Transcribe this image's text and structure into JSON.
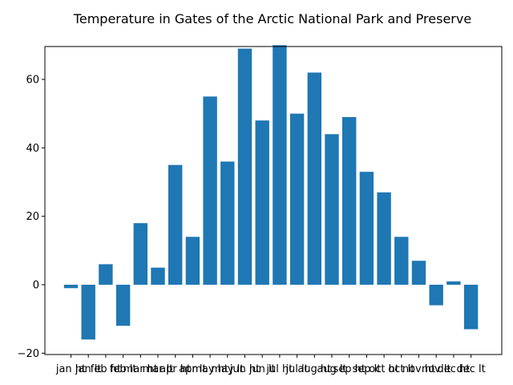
{
  "chart_data": {
    "type": "bar",
    "title": "Temperature in Gates of the Arctic National Park and Preserve",
    "xlabel": "",
    "ylabel": "",
    "categories": [
      "jan ht",
      "jan lt",
      "feb ht",
      "feb lt",
      "mar ht",
      "mar lt",
      "apr ht",
      "apr lt",
      "may ht",
      "may lt",
      "jun ht",
      "jun lt",
      "jul ht",
      "jul lt",
      "aug ht",
      "aug lt",
      "sep ht",
      "sep lt",
      "oct ht",
      "oct lt",
      "nov ht",
      "nov lt",
      "dec ht",
      "dec lt"
    ],
    "values": [
      -1,
      -16,
      6,
      -12,
      18,
      5,
      35,
      14,
      55,
      36,
      69,
      48,
      70,
      50,
      62,
      44,
      49,
      33,
      27,
      14,
      7,
      -6,
      1,
      -13
    ],
    "ylim": [
      -20,
      75
    ],
    "yticks": [
      -20,
      0,
      20,
      40,
      60
    ],
    "grid": false,
    "bar_color": "#1f77b4"
  }
}
